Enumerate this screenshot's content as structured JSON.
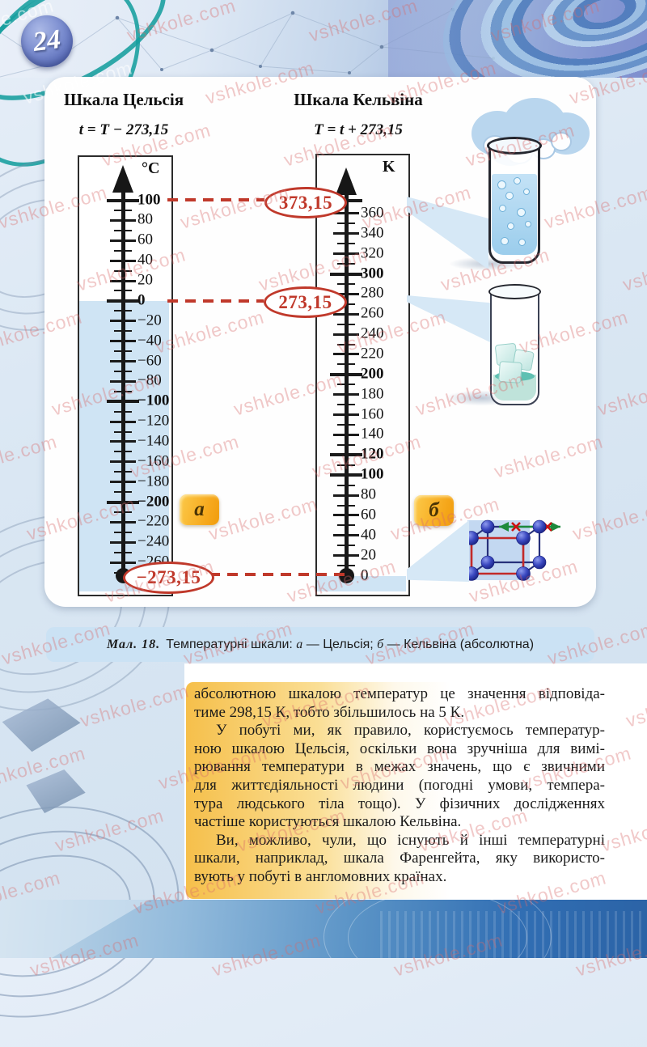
{
  "page_number": "24",
  "watermark": "vshkole.com",
  "figure": {
    "celsius": {
      "title": "Шкала Цельсія",
      "formula": "t = T − 273,15",
      "unit": "°C",
      "labels": [
        100,
        80,
        60,
        40,
        20,
        0,
        -20,
        -40,
        -60,
        -80,
        -100,
        -120,
        -140,
        -160,
        -180,
        -200,
        -220,
        -240,
        -260
      ],
      "bold_labels": [
        100,
        0,
        -100,
        -200
      ],
      "circled_absolute_zero": "−273,15",
      "note_letter": "а"
    },
    "kelvin": {
      "title": "Шкала Кельвіна",
      "formula": "T = t + 273,15",
      "unit": "K",
      "labels": [
        360,
        340,
        320,
        300,
        280,
        260,
        240,
        220,
        200,
        180,
        160,
        140,
        120,
        100,
        80,
        60,
        40,
        20,
        0
      ],
      "bold_labels": [
        300,
        200,
        120,
        100
      ],
      "circled_boiling_point": "373,15",
      "circled_melting_point": "273,15",
      "note_letter": "б"
    },
    "illustrations": [
      "boiling-water-glass",
      "ice-glass",
      "crystal-lattice"
    ]
  },
  "caption": {
    "label": "Мал. 18.",
    "body": "Температурні шкали:",
    "item_a": "а",
    "sep_a": " — Цельсія; ",
    "item_b": "б",
    "sep_b": " — Кельвіна (абсолютна)"
  },
  "body_text": {
    "paragraphs": [
      {
        "indent": false,
        "lines": [
          "абсолютною шкалою температур це значення відповіда-",
          "тиме 298,15 К, тобто збільшилось на 5 К."
        ]
      },
      {
        "indent": true,
        "lines": [
          "У побуті ми, як правило, користуємось температур-",
          "ною шкалою Цельсія, оскільки вона зручніша для вимі-",
          "рювання температури в межах значень, що є звичними",
          "для життєдіяльності людини (погодні умови, темпера-",
          "тура людського тіла тощо). У фізичних дослідженнях",
          "частіше користуються шкалою Кельвіна."
        ]
      },
      {
        "indent": true,
        "lines": [
          "Ви, можливо, чули, що існують й інші температурні",
          "шкали, наприклад, шкала Фаренгейта, яку використо-",
          "вують у побуті в англомовних країнах."
        ]
      }
    ]
  },
  "colors": {
    "accent_red": "#c0392b",
    "note_orange": "#f6a81c",
    "highlight_yellow": "#f5bc41",
    "caption_blue": "#cbe2f4",
    "scale_fill_blue": "#cfe4f4",
    "watermark_pink": "#d96a6a"
  }
}
